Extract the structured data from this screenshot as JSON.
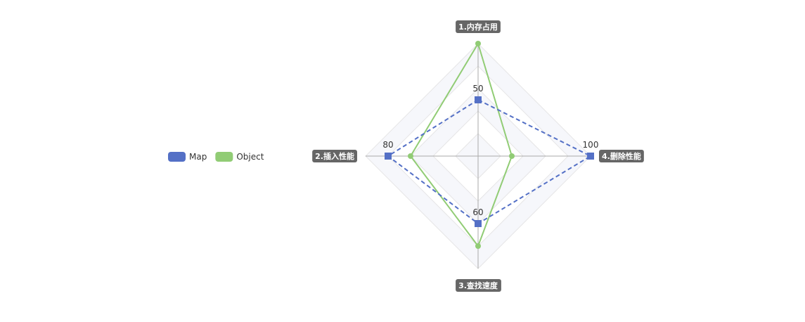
{
  "chart_data": {
    "type": "radar",
    "indicators": [
      {
        "name": "1.内存占用",
        "max": 100
      },
      {
        "name": "2.插入性能",
        "max": 100
      },
      {
        "name": "3.查找速度",
        "max": 100
      },
      {
        "name": "4.删除性能",
        "max": 100
      }
    ],
    "series": [
      {
        "name": "Map",
        "values": [
          50,
          80,
          60,
          100
        ],
        "color": "#5470c6",
        "line_style": "dashed",
        "marker": "square",
        "labels": [
          "50",
          "80",
          "60",
          "100"
        ]
      },
      {
        "name": "Object",
        "values": [
          100,
          60,
          80,
          30
        ],
        "color": "#91cc75",
        "line_style": "solid",
        "marker": "circle",
        "labels": []
      }
    ],
    "legend": {
      "position": "left",
      "items": [
        "Map",
        "Object"
      ]
    },
    "split_area_colors": [
      "#ffffff",
      "#f6f7fb"
    ],
    "split_line_color": "#e6e6e6",
    "axis_line_color": "#aaaaaa",
    "axis_label_bg": "#666666"
  }
}
